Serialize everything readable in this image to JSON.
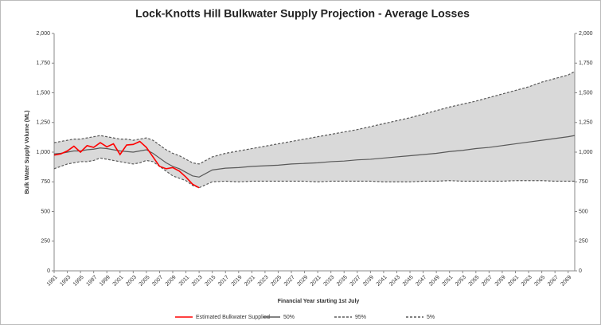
{
  "chart_data": {
    "type": "line",
    "title": "Lock-Knotts Hill Bulkwater Supply Projection - Average Losses",
    "x_label": "Financial Year starting 1st July",
    "y_label": "Bulk Water Supply Volume (ML)",
    "x": [
      1991,
      1992,
      1993,
      1994,
      1995,
      1996,
      1997,
      1998,
      1999,
      2000,
      2001,
      2002,
      2003,
      2004,
      2005,
      2006,
      2007,
      2008,
      2009,
      2010,
      2011,
      2012,
      2013,
      2015,
      2017,
      2019,
      2021,
      2023,
      2025,
      2027,
      2029,
      2031,
      2033,
      2035,
      2037,
      2039,
      2041,
      2043,
      2045,
      2047,
      2049,
      2051,
      2053,
      2055,
      2057,
      2059,
      2061,
      2063,
      2065,
      2067,
      2069,
      2070
    ],
    "series": [
      {
        "name": "Estimated Bulkwater Supplied",
        "color": "#ff0000",
        "dash": false,
        "values": [
          975,
          985,
          1010,
          1050,
          1000,
          1055,
          1040,
          1080,
          1045,
          1070,
          980,
          1060,
          1065,
          1090,
          1040,
          960,
          880,
          860,
          870,
          840,
          790,
          730,
          700,
          null,
          null,
          null,
          null,
          null,
          null,
          null,
          null,
          null,
          null,
          null,
          null,
          null,
          null,
          null,
          null,
          null,
          null,
          null,
          null,
          null,
          null,
          null,
          null,
          null,
          null,
          null,
          null,
          null
        ]
      },
      {
        "name": "50%",
        "color": "#595959",
        "dash": false,
        "values": [
          985,
          990,
          1000,
          1010,
          1010,
          1020,
          1025,
          1035,
          1030,
          1020,
          1010,
          1005,
          1000,
          1010,
          1020,
          990,
          950,
          910,
          880,
          860,
          830,
          800,
          790,
          850,
          865,
          870,
          880,
          885,
          890,
          900,
          905,
          910,
          920,
          925,
          935,
          940,
          950,
          960,
          970,
          980,
          990,
          1005,
          1015,
          1030,
          1040,
          1055,
          1070,
          1085,
          1100,
          1115,
          1130,
          1140
        ]
      },
      {
        "name": "95%",
        "color": "#595959",
        "dash": true,
        "values": [
          1080,
          1090,
          1100,
          1110,
          1110,
          1120,
          1130,
          1140,
          1130,
          1120,
          1110,
          1110,
          1100,
          1110,
          1120,
          1100,
          1060,
          1020,
          990,
          970,
          940,
          910,
          900,
          960,
          990,
          1010,
          1030,
          1050,
          1070,
          1090,
          1110,
          1130,
          1150,
          1170,
          1190,
          1215,
          1240,
          1265,
          1290,
          1320,
          1350,
          1380,
          1405,
          1430,
          1460,
          1490,
          1520,
          1550,
          1590,
          1620,
          1650,
          1680
        ]
      },
      {
        "name": "5%",
        "color": "#595959",
        "dash": true,
        "values": [
          860,
          880,
          900,
          910,
          920,
          920,
          930,
          950,
          940,
          930,
          920,
          910,
          900,
          910,
          930,
          920,
          880,
          840,
          800,
          780,
          760,
          720,
          700,
          750,
          755,
          750,
          755,
          755,
          755,
          755,
          755,
          750,
          755,
          755,
          755,
          755,
          750,
          750,
          750,
          755,
          755,
          760,
          755,
          755,
          755,
          755,
          760,
          760,
          760,
          755,
          755,
          755
        ]
      }
    ],
    "band_color": "#d9d9d9",
    "xlim": [
      1991,
      2070
    ],
    "xticks": [
      1991,
      1993,
      1995,
      1997,
      1999,
      2001,
      2003,
      2005,
      2007,
      2009,
      2011,
      2013,
      2015,
      2017,
      2019,
      2021,
      2023,
      2025,
      2027,
      2029,
      2031,
      2033,
      2035,
      2037,
      2039,
      2041,
      2043,
      2045,
      2047,
      2049,
      2051,
      2053,
      2055,
      2057,
      2059,
      2061,
      2063,
      2065,
      2067,
      2069
    ],
    "ylim": [
      0,
      2000
    ],
    "yticks": [
      0,
      250,
      500,
      750,
      {
        "value": 1000,
        "label": "1,000"
      },
      {
        "value": 1250,
        "label": "1,250"
      },
      {
        "value": 1500,
        "label": "1,500"
      },
      {
        "value": 1750,
        "label": "1,750"
      },
      {
        "value": 2000,
        "label": "2,000"
      }
    ],
    "y2lim": [
      0,
      2000
    ],
    "y2ticks": [
      0,
      250,
      500,
      750,
      {
        "value": 1000,
        "label": "1,000"
      },
      {
        "value": 1250,
        "label": "1,250"
      },
      {
        "value": 1500,
        "label": "1,500"
      },
      {
        "value": 1750,
        "label": "1,750"
      },
      {
        "value": 2000,
        "label": "2,000"
      }
    ],
    "grid": false
  }
}
